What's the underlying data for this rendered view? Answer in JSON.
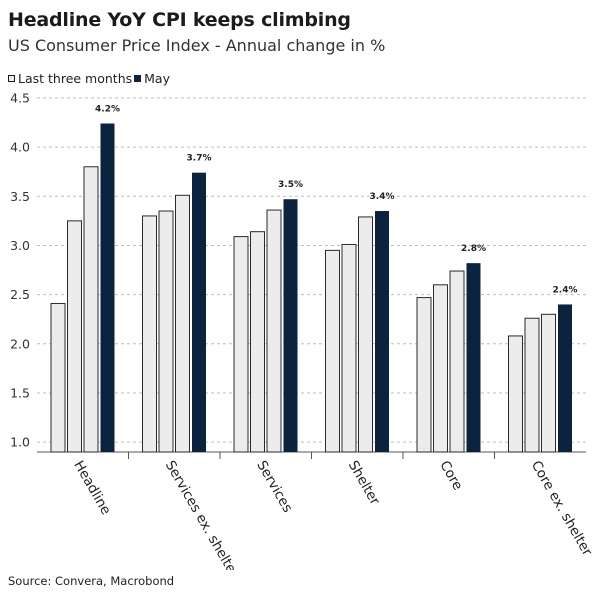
{
  "title": "Headline YoY CPI keeps climbing",
  "subtitle": "US Consumer Price Index - Annual change in %",
  "legend": {
    "light_label": "Last three months",
    "dark_label": "May"
  },
  "source": "Source: Convera, Macrobond",
  "colors": {
    "light_bar": "#ececec",
    "light_bar_stroke": "#2a2a2a",
    "dark_bar": "#0c2340",
    "grid": "#bdbdbd",
    "axis": "#555555"
  },
  "chart_data": {
    "type": "bar",
    "categories": [
      "Headline",
      "Services ex. shelter",
      "Services",
      "Shelter",
      "Core",
      "Core ex. shelter"
    ],
    "series": [
      {
        "name": "Last three months",
        "values": [
          2.41,
          3.3,
          3.09,
          2.95,
          2.47,
          2.08
        ]
      },
      {
        "name": "Last three months",
        "values": [
          3.25,
          3.35,
          3.14,
          3.01,
          2.6,
          2.26
        ]
      },
      {
        "name": "Last three months",
        "values": [
          3.8,
          3.51,
          3.36,
          3.29,
          2.74,
          2.3
        ]
      },
      {
        "name": "May",
        "values": [
          4.24,
          3.74,
          3.47,
          3.35,
          2.82,
          2.4
        ]
      }
    ],
    "data_labels": [
      "4.2%",
      "3.7%",
      "3.5%",
      "3.4%",
      "2.8%",
      "2.4%"
    ],
    "yticks": [
      "1.0",
      "1.5",
      "2.0",
      "2.5",
      "3.0",
      "3.5",
      "4.0",
      "4.5"
    ],
    "ylim": [
      0.9,
      4.55
    ],
    "grid": true,
    "legend_position": "top-left"
  }
}
